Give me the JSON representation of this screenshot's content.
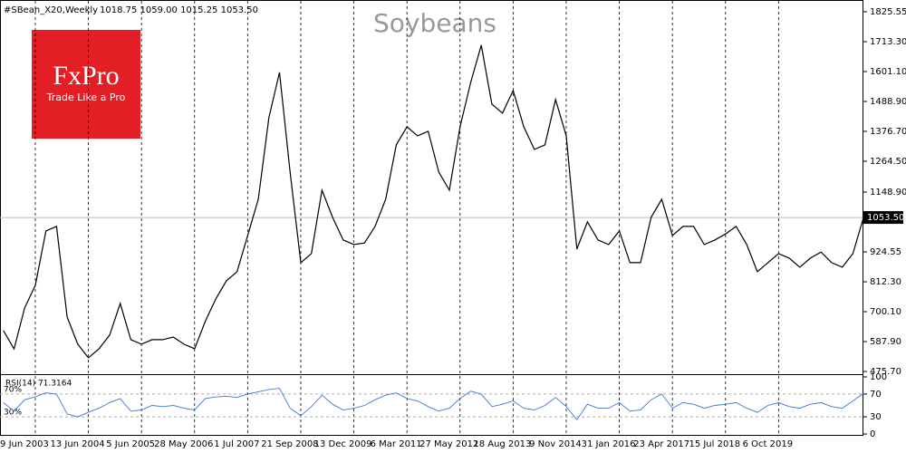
{
  "chart_data": [
    {
      "type": "line",
      "title": "Soybeans",
      "symbol": "#SBean_X20,Weekly",
      "ohlc": "1018.75 1059.00 1015.25 1053.50",
      "categories": [
        null,
        null,
        null,
        "9 Jun 2003",
        null,
        null,
        null,
        null,
        "13 Jun 2004",
        null,
        null,
        null,
        null,
        "5 Jun 2005",
        null,
        null,
        null,
        null,
        "28 May 2006",
        null,
        null,
        null,
        null,
        "1 Jul 2007",
        null,
        null,
        null,
        null,
        "21 Sep 2008",
        null,
        null,
        null,
        null,
        "13 Dec 2009",
        null,
        null,
        null,
        null,
        "6 Mar 2011",
        null,
        null,
        null,
        null,
        "27 May 2012",
        null,
        null,
        null,
        null,
        "18 Aug 2013",
        null,
        null,
        null,
        null,
        "9 Nov 2014",
        null,
        null,
        null,
        null,
        "31 Jan 2016",
        null,
        null,
        null,
        null,
        "23 Apr 2017",
        null,
        null,
        null,
        null,
        "15 Jul 2018",
        null,
        null,
        null,
        null,
        "6 Oct 2019",
        null,
        null,
        null,
        null,
        null,
        null,
        null,
        null
      ],
      "values": [
        629,
        560,
        714,
        799,
        1003,
        1020,
        680,
        578,
        527,
        561,
        612,
        731,
        595,
        578,
        595,
        595,
        605,
        578,
        561,
        663,
        748,
        816,
        850,
        986,
        1122,
        1428,
        1598,
        1224,
        884,
        918,
        1156,
        1054,
        969,
        952,
        958,
        1020,
        1122,
        1326,
        1394,
        1360,
        1377,
        1224,
        1156,
        1394,
        1560,
        1700,
        1479,
        1445,
        1530,
        1394,
        1309,
        1326,
        1496,
        1360,
        935,
        1037,
        969,
        952,
        1003,
        884,
        884,
        1054,
        1122,
        986,
        1020,
        1020,
        952,
        969,
        992,
        1020,
        952,
        850,
        884,
        918,
        901,
        867,
        901,
        924,
        884,
        867,
        918,
        1053.5
      ],
      "color": "#000000",
      "ylim": [
        469,
        1856
      ],
      "yticks": [
        1825.55,
        {
          "value": 1713.3,
          "label": "1713.30"
        },
        {
          "value": 1601.1,
          "label": "1601.10"
        },
        {
          "value": 1488.9,
          "label": "1488.90"
        },
        {
          "value": 1376.7,
          "label": "1376.70"
        },
        {
          "value": 1264.5,
          "label": "1264.50"
        },
        {
          "value": 1148.9,
          "label": "1148.90"
        },
        924.55,
        {
          "value": 812.3,
          "label": "812.30"
        },
        {
          "value": 700.1,
          "label": "700.10"
        },
        {
          "value": 587.9,
          "label": "587.90"
        },
        {
          "value": 475.7,
          "label": "475.70"
        }
      ],
      "last": {
        "value": 1053.5,
        "label": "1053.50"
      },
      "xgrid": true
    },
    {
      "type": "line",
      "title": "RSI(14) 71.3164",
      "values": [
        55,
        40,
        60,
        65,
        72,
        70,
        35,
        30,
        38,
        45,
        55,
        62,
        40,
        42,
        50,
        48,
        50,
        45,
        42,
        62,
        65,
        66,
        64,
        70,
        74,
        78,
        80,
        45,
        32,
        48,
        68,
        52,
        42,
        45,
        50,
        60,
        68,
        72,
        62,
        58,
        48,
        40,
        45,
        62,
        75,
        70,
        48,
        52,
        58,
        45,
        42,
        50,
        64,
        48,
        25,
        52,
        45,
        45,
        55,
        40,
        42,
        60,
        70,
        45,
        55,
        52,
        45,
        50,
        52,
        55,
        45,
        38,
        50,
        55,
        48,
        45,
        52,
        55,
        48,
        45,
        58,
        71.3164
      ],
      "color": "#3c78d8",
      "ylim": [
        0,
        100
      ],
      "yticks": [
        100,
        70,
        30,
        0
      ],
      "levels": [
        {
          "value": 70,
          "label": "70%"
        },
        {
          "value": 30,
          "label": "30%"
        }
      ]
    }
  ],
  "logo": {
    "brand": "FxPro",
    "slogan": "Trade Like a Pro"
  }
}
